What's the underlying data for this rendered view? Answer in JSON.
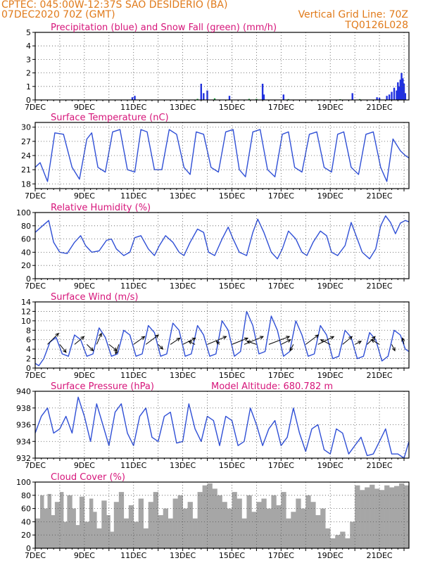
{
  "header": {
    "line1": "CPTEC:   045:00W-12:37S  SAO DESIDERIO (BA)",
    "line2": "07DEC2020 70Z (GMT)",
    "grid_note": "Vertical Grid Line: 70Z",
    "code": "TQ0126L028"
  },
  "colors": {
    "header": "#e07a1a",
    "panel_title": "#d6157a",
    "line": "#2f4fd6",
    "precip": "#2030e0",
    "snow": "#1e9a3a",
    "cloud": "#a6a6a6"
  },
  "chart_data": [
    {
      "id": "precip",
      "type": "bar",
      "title": "Precipitation (blue) and Snow Fall (green) (mm/h)",
      "xlabel": "",
      "ylabel": "",
      "ylim": [
        0,
        5
      ],
      "yticks": [
        0,
        1,
        2,
        3,
        4,
        5
      ],
      "x_range": [
        7,
        22.2
      ],
      "xticks": [
        "7DEC",
        "9DEC",
        "11DEC",
        "13DEC",
        "15DEC",
        "17DEC",
        "19DEC",
        "21DEC"
      ],
      "grid": true,
      "series": [
        {
          "color_key": "precip",
          "x": [
            10.95,
            11.05,
            13.75,
            13.85,
            14.0,
            14.9,
            16.25,
            16.3,
            17.1,
            19.9,
            20.9,
            21.0,
            21.3,
            21.4,
            21.5,
            21.6,
            21.7,
            21.75,
            21.8,
            21.85,
            21.9,
            21.95,
            22.0,
            22.05
          ],
          "values": [
            0.2,
            0.3,
            1.2,
            0.5,
            0.7,
            0.3,
            1.2,
            0.4,
            0.4,
            0.5,
            0.2,
            0.15,
            0.3,
            0.4,
            0.6,
            0.9,
            0.7,
            1.3,
            1.0,
            1.5,
            2.0,
            1.6,
            1.2,
            0.5
          ]
        },
        {
          "color_key": "snow",
          "x": [
            13.6,
            14.3,
            15.7,
            16.0,
            17.3,
            19.4,
            20.2
          ],
          "values": [
            0.08,
            0.12,
            0.08,
            0.08,
            0.06,
            0.05,
            0.06
          ]
        }
      ]
    },
    {
      "id": "temp",
      "type": "line",
      "title": "Surface Temperature (nC)",
      "xlabel": "",
      "ylabel": "",
      "ylim": [
        17,
        31
      ],
      "yticks": [
        18,
        21,
        24,
        27,
        30
      ],
      "x_range": [
        7,
        22.2
      ],
      "xticks": [
        "7DEC",
        "9DEC",
        "11DEC",
        "13DEC",
        "15DEC",
        "17DEC",
        "19DEC",
        "21DEC"
      ],
      "grid": true,
      "series": [
        {
          "color_key": "line",
          "x": [
            7.0,
            7.2,
            7.5,
            7.8,
            8.15,
            8.5,
            8.8,
            9.1,
            9.3,
            9.55,
            9.85,
            10.15,
            10.45,
            10.75,
            11.05,
            11.3,
            11.55,
            11.85,
            12.15,
            12.45,
            12.75,
            13.05,
            13.3,
            13.55,
            13.85,
            14.15,
            14.45,
            14.75,
            15.05,
            15.3,
            15.55,
            15.85,
            16.15,
            16.45,
            16.75,
            17.05,
            17.3,
            17.55,
            17.85,
            18.15,
            18.45,
            18.75,
            19.05,
            19.3,
            19.55,
            19.85,
            20.15,
            20.45,
            20.75,
            21.05,
            21.3,
            21.55,
            21.85,
            22.05,
            22.2
          ],
          "values": [
            21.5,
            22.5,
            18.5,
            28.8,
            28.5,
            21.5,
            19.0,
            27.5,
            28.8,
            21.5,
            20.5,
            29.0,
            29.5,
            21.0,
            20.5,
            29.5,
            29.0,
            21.0,
            21.0,
            29.5,
            28.5,
            21.5,
            20.0,
            29.0,
            28.5,
            21.5,
            20.5,
            29.0,
            29.5,
            21.0,
            19.5,
            29.0,
            29.5,
            21.0,
            19.5,
            28.5,
            29.0,
            21.5,
            20.5,
            28.5,
            29.0,
            21.5,
            20.5,
            28.5,
            29.0,
            21.5,
            20.0,
            28.5,
            29.0,
            21.5,
            18.5,
            27.5,
            25.0,
            24.0,
            23.5
          ]
        }
      ]
    },
    {
      "id": "rh",
      "type": "line",
      "title": "Relative Humidity (%)",
      "xlabel": "",
      "ylabel": "",
      "ylim": [
        0,
        100
      ],
      "yticks": [
        0,
        20,
        40,
        60,
        80,
        100
      ],
      "x_range": [
        7,
        22.2
      ],
      "xticks": [
        "7DEC",
        "9DEC",
        "11DEC",
        "13DEC",
        "15DEC",
        "17DEC",
        "19DEC",
        "21DEC"
      ],
      "grid": true,
      "series": [
        {
          "color_key": "line",
          "x": [
            7.0,
            7.3,
            7.55,
            7.75,
            8.0,
            8.3,
            8.6,
            8.85,
            9.05,
            9.3,
            9.6,
            9.9,
            10.1,
            10.3,
            10.6,
            10.85,
            11.05,
            11.3,
            11.6,
            11.85,
            12.05,
            12.3,
            12.6,
            12.85,
            13.05,
            13.3,
            13.6,
            13.85,
            14.05,
            14.3,
            14.6,
            14.85,
            15.05,
            15.3,
            15.6,
            15.85,
            16.05,
            16.3,
            16.6,
            16.85,
            17.05,
            17.3,
            17.6,
            17.85,
            18.05,
            18.3,
            18.6,
            18.85,
            19.05,
            19.3,
            19.6,
            19.85,
            20.05,
            20.3,
            20.6,
            20.85,
            21.05,
            21.25,
            21.45,
            21.65,
            21.85,
            22.05,
            22.2
          ],
          "values": [
            70,
            80,
            88,
            55,
            40,
            38,
            55,
            65,
            50,
            40,
            42,
            58,
            60,
            45,
            35,
            40,
            62,
            65,
            45,
            35,
            50,
            65,
            55,
            40,
            35,
            55,
            75,
            70,
            40,
            35,
            60,
            78,
            60,
            40,
            35,
            70,
            90,
            70,
            40,
            30,
            45,
            72,
            60,
            40,
            35,
            55,
            72,
            65,
            40,
            35,
            50,
            85,
            65,
            40,
            30,
            45,
            80,
            95,
            85,
            68,
            84,
            88,
            86
          ]
        }
      ]
    },
    {
      "id": "wind",
      "type": "line",
      "title": "Surface Wind (m/s)",
      "xlabel": "",
      "ylabel": "",
      "ylim": [
        0,
        14
      ],
      "yticks": [
        0,
        2,
        4,
        6,
        8,
        10,
        12,
        14
      ],
      "x_range": [
        7,
        22.2
      ],
      "xticks": [
        "7DEC",
        "9DEC",
        "11DEC",
        "13DEC",
        "15DEC",
        "17DEC",
        "19DEC",
        "21DEC"
      ],
      "grid": true,
      "series": [
        {
          "color_key": "line",
          "x": [
            7.0,
            7.15,
            7.35,
            7.6,
            7.85,
            8.1,
            8.35,
            8.6,
            8.85,
            9.1,
            9.35,
            9.6,
            9.85,
            10.1,
            10.35,
            10.6,
            10.85,
            11.1,
            11.35,
            11.6,
            11.85,
            12.1,
            12.35,
            12.6,
            12.85,
            13.1,
            13.35,
            13.6,
            13.85,
            14.1,
            14.35,
            14.6,
            14.85,
            15.1,
            15.35,
            15.6,
            15.85,
            16.1,
            16.35,
            16.6,
            16.85,
            17.1,
            17.35,
            17.6,
            17.85,
            18.1,
            18.35,
            18.6,
            18.85,
            19.1,
            19.35,
            19.6,
            19.85,
            20.1,
            20.35,
            20.6,
            20.85,
            21.1,
            21.35,
            21.6,
            21.85,
            22.05,
            22.2
          ],
          "values": [
            1.0,
            0.5,
            2.0,
            5.5,
            6.5,
            3.0,
            2.5,
            7.0,
            6.0,
            2.5,
            3.0,
            8.5,
            6.5,
            2.5,
            3.0,
            8.0,
            7.0,
            2.5,
            3.0,
            9.0,
            7.5,
            2.5,
            3.0,
            9.5,
            8.0,
            2.5,
            3.0,
            9.0,
            7.0,
            2.5,
            3.0,
            10.0,
            8.0,
            2.5,
            3.5,
            12.0,
            9.0,
            3.0,
            3.5,
            11.0,
            8.0,
            2.5,
            3.5,
            10.0,
            7.0,
            2.5,
            3.0,
            9.0,
            7.0,
            2.0,
            2.5,
            8.0,
            6.5,
            2.0,
            2.5,
            7.5,
            6.0,
            1.5,
            2.5,
            8.0,
            7.0,
            4.0,
            3.5
          ]
        }
      ],
      "vectors": {
        "x": [
          7.5,
          8.0,
          8.6,
          9.1,
          9.5,
          10.0,
          10.4,
          11.0,
          11.5,
          12.0,
          12.5,
          13.0,
          13.5,
          14.0,
          14.5,
          15.0,
          15.5,
          16.0,
          16.5,
          17.0,
          17.5,
          18.0,
          18.5,
          19.0,
          19.5,
          20.0,
          20.5,
          21.0,
          21.5,
          22.0
        ],
        "u": [
          3.5,
          2.0,
          3.0,
          2.0,
          1.5,
          2.5,
          -1.0,
          3.5,
          4.0,
          1.5,
          3.0,
          4.0,
          -2.0,
          6.0,
          -1.0,
          5.0,
          6.0,
          -3.0,
          6.5,
          3.0,
          -1.0,
          4.0,
          5.0,
          -3.0,
          3.0,
          2.0,
          2.5,
          -2.5,
          1.0,
          -0.5
        ],
        "v": [
          3.5,
          -2.5,
          2.5,
          -2.0,
          3.5,
          -2.0,
          -3.0,
          2.5,
          3.0,
          -1.5,
          2.0,
          2.0,
          1.0,
          2.5,
          1.0,
          2.0,
          2.5,
          1.0,
          2.5,
          1.5,
          -2.0,
          3.0,
          2.5,
          1.5,
          2.5,
          1.0,
          2.5,
          1.5,
          -2.0,
          2.0
        ]
      }
    },
    {
      "id": "pressure",
      "type": "line",
      "title": "Surface Pressure (hPa)",
      "annotation": "Model Altitude: 680.782 m",
      "xlabel": "",
      "ylabel": "",
      "ylim": [
        932,
        940
      ],
      "yticks": [
        932,
        934,
        936,
        938,
        940
      ],
      "x_range": [
        7,
        22.2
      ],
      "xticks": [
        "7DEC",
        "9DEC",
        "11DEC",
        "13DEC",
        "15DEC",
        "17DEC",
        "19DEC",
        "21DEC"
      ],
      "grid": true,
      "series": [
        {
          "color_key": "line",
          "x": [
            7.0,
            7.25,
            7.5,
            7.75,
            8.0,
            8.25,
            8.5,
            8.75,
            9.0,
            9.25,
            9.5,
            9.75,
            10.0,
            10.25,
            10.5,
            10.75,
            11.0,
            11.25,
            11.5,
            11.75,
            12.0,
            12.25,
            12.5,
            12.75,
            13.0,
            13.25,
            13.5,
            13.75,
            14.0,
            14.25,
            14.5,
            14.75,
            15.0,
            15.25,
            15.5,
            15.75,
            16.0,
            16.25,
            16.5,
            16.75,
            17.0,
            17.25,
            17.5,
            17.75,
            18.0,
            18.25,
            18.5,
            18.75,
            19.0,
            19.25,
            19.5,
            19.75,
            20.0,
            20.25,
            20.5,
            20.75,
            21.0,
            21.25,
            21.5,
            21.75,
            22.0,
            22.2
          ],
          "values": [
            935.0,
            937.0,
            938.0,
            935.0,
            935.5,
            937.0,
            935.0,
            939.3,
            937.0,
            934.0,
            938.5,
            936.0,
            933.5,
            937.5,
            938.5,
            935.0,
            933.5,
            937.0,
            938.0,
            934.5,
            934.0,
            937.0,
            937.5,
            933.8,
            934.0,
            938.5,
            935.5,
            934.0,
            937.0,
            936.5,
            933.5,
            937.0,
            936.5,
            933.5,
            934.0,
            938.0,
            936.0,
            933.5,
            935.5,
            936.5,
            933.5,
            934.5,
            938.0,
            935.0,
            932.8,
            935.5,
            936.0,
            933.0,
            932.5,
            935.5,
            935.0,
            932.5,
            933.5,
            934.5,
            932.3,
            932.5,
            934.0,
            935.5,
            932.5,
            932.5,
            932.0,
            934.0
          ]
        }
      ]
    },
    {
      "id": "cloud",
      "type": "area",
      "title": "Cloud Cover (%)",
      "xlabel": "",
      "ylabel": "",
      "ylim": [
        0,
        100
      ],
      "yticks": [
        0,
        20,
        40,
        60,
        80,
        100
      ],
      "x_range": [
        7,
        22.2
      ],
      "xticks": [
        "7DEC",
        "9DEC",
        "11DEC",
        "13DEC",
        "15DEC",
        "17DEC",
        "19DEC",
        "21DEC"
      ],
      "grid": true,
      "series": [
        {
          "color_key": "cloud",
          "x": [
            7.0,
            7.2,
            7.35,
            7.5,
            7.65,
            7.8,
            8.0,
            8.15,
            8.3,
            8.5,
            8.65,
            8.8,
            9.0,
            9.2,
            9.35,
            9.5,
            9.7,
            9.9,
            10.05,
            10.2,
            10.4,
            10.6,
            10.8,
            11.0,
            11.2,
            11.4,
            11.6,
            11.8,
            12.0,
            12.2,
            12.4,
            12.6,
            12.8,
            13.0,
            13.2,
            13.4,
            13.6,
            13.8,
            14.0,
            14.2,
            14.4,
            14.6,
            14.8,
            15.0,
            15.2,
            15.4,
            15.6,
            15.8,
            16.0,
            16.2,
            16.4,
            16.6,
            16.8,
            17.0,
            17.2,
            17.4,
            17.6,
            17.8,
            18.0,
            18.2,
            18.4,
            18.6,
            18.8,
            19.0,
            19.2,
            19.4,
            19.6,
            19.8,
            20.0,
            20.2,
            20.4,
            20.6,
            20.8,
            21.0,
            21.2,
            21.4,
            21.6,
            21.8,
            22.0,
            22.2
          ],
          "values": [
            45,
            80,
            60,
            82,
            50,
            70,
            85,
            40,
            80,
            60,
            35,
            78,
            40,
            75,
            55,
            30,
            72,
            50,
            25,
            70,
            85,
            45,
            65,
            40,
            75,
            30,
            70,
            85,
            50,
            60,
            45,
            75,
            80,
            60,
            70,
            45,
            85,
            95,
            98,
            90,
            80,
            70,
            60,
            85,
            75,
            45,
            80,
            55,
            70,
            75,
            60,
            80,
            65,
            85,
            45,
            55,
            75,
            60,
            80,
            70,
            50,
            60,
            30,
            15,
            20,
            25,
            15,
            40,
            95,
            88,
            92,
            96,
            90,
            88,
            95,
            92,
            94,
            98,
            95,
            92
          ]
        }
      ]
    }
  ]
}
